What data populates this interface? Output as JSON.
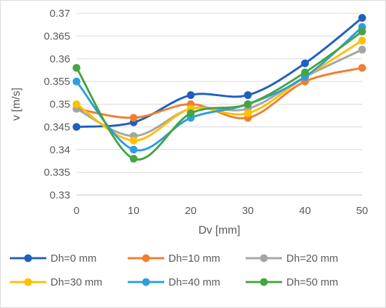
{
  "chart_data": {
    "type": "line",
    "smooth": true,
    "xlabel": "Dv [mm]",
    "ylabel": "v [m/s]",
    "x": [
      0,
      10,
      20,
      30,
      40,
      50
    ],
    "xlim": [
      0,
      50
    ],
    "ylim": [
      0.33,
      0.37
    ],
    "xticks": [
      "0",
      "10",
      "20",
      "30",
      "40",
      "50"
    ],
    "yticks": [
      "0.33",
      "0.335",
      "0.34",
      "0.345",
      "0.35",
      "0.355",
      "0.36",
      "0.365",
      "0.37"
    ],
    "grid": "horizontal",
    "legend_position": "bottom",
    "series": [
      {
        "name": "Dh=0 mm",
        "color": "#1f5fbf",
        "values": [
          0.345,
          0.346,
          0.352,
          0.352,
          0.359,
          0.369
        ]
      },
      {
        "name": "Dh=10 mm",
        "color": "#f07f2d",
        "values": [
          0.349,
          0.347,
          0.35,
          0.347,
          0.355,
          0.358
        ]
      },
      {
        "name": "Dh=20 mm",
        "color": "#a5a5a5",
        "values": [
          0.349,
          0.343,
          0.349,
          0.349,
          0.356,
          0.362
        ]
      },
      {
        "name": "Dh=30 mm",
        "color": "#ffc000",
        "values": [
          0.35,
          0.342,
          0.349,
          0.348,
          0.356,
          0.364
        ]
      },
      {
        "name": "Dh=40 mm",
        "color": "#2f9de0",
        "values": [
          0.355,
          0.34,
          0.347,
          0.35,
          0.356,
          0.367
        ]
      },
      {
        "name": "Dh=50 mm",
        "color": "#44a544",
        "values": [
          0.358,
          0.338,
          0.348,
          0.35,
          0.357,
          0.366
        ]
      }
    ]
  }
}
